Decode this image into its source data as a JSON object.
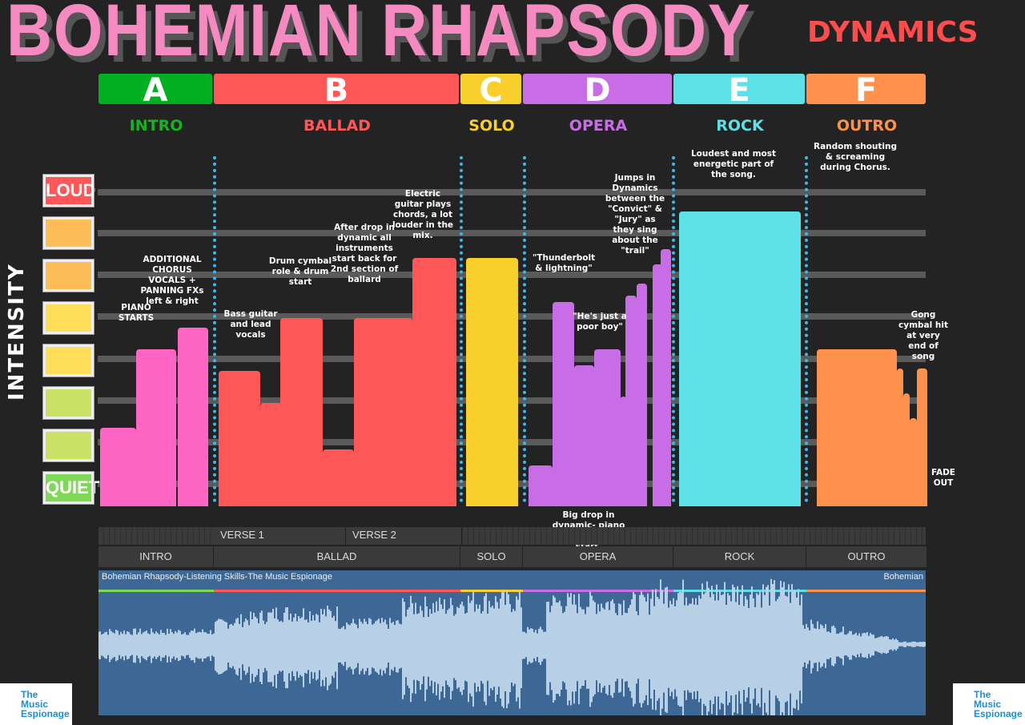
{
  "title": "BOHEMIAN RHAPSODY",
  "subtitle": "DYNAMICS",
  "y_axis_label": "INTENSITY",
  "levels": {
    "top": "LOUD",
    "bottom": "QUIET"
  },
  "colors": {
    "intro": "#00b020",
    "ballad": "#ff5757",
    "solo": "#f8cf2b",
    "opera": "#c86de6",
    "rock": "#5ce1e6",
    "outro": "#ff914d",
    "dots": "#3db8ee",
    "title": "#f48ac0",
    "subtitle": "#ff4d4d"
  },
  "sections": [
    {
      "letter": "A",
      "name": "INTRO",
      "color": "#00b020",
      "textcolor": "#17b21f"
    },
    {
      "letter": "B",
      "name": "BALLAD",
      "color": "#ff5757",
      "textcolor": "#ff5757"
    },
    {
      "letter": "C",
      "name": "SOLO",
      "color": "#f8cf2b",
      "textcolor": "#f8cf2b"
    },
    {
      "letter": "D",
      "name": "OPERA",
      "color": "#c86de6",
      "textcolor": "#c86de6"
    },
    {
      "letter": "E",
      "name": "ROCK",
      "color": "#5ce1e6",
      "textcolor": "#5ce1e6"
    },
    {
      "letter": "F",
      "name": "OUTRO",
      "color": "#ff914d",
      "textcolor": "#ff914d"
    }
  ],
  "chart_data": {
    "type": "bar",
    "ylabel": "INTENSITY",
    "ylim": [
      0,
      100
    ],
    "series": [
      {
        "section": "INTRO",
        "values": [
          25,
          50,
          57
        ]
      },
      {
        "section": "BALLAD",
        "values": [
          43,
          33,
          60,
          18,
          60,
          79
        ]
      },
      {
        "section": "SOLO",
        "values": [
          79
        ]
      },
      {
        "section": "OPERA",
        "values": [
          13,
          65,
          45,
          50,
          35,
          67,
          71,
          77,
          82
        ]
      },
      {
        "section": "ROCK",
        "values": [
          94
        ]
      },
      {
        "section": "OUTRO",
        "values": [
          50,
          44,
          36,
          28,
          44
        ]
      }
    ]
  },
  "annotations": {
    "piano": "PIANO STARTS",
    "chorus": "ADDITIONAL CHORUS VOCALS + PANNING FXs left & right",
    "bass": "Bass guitar and lead vocals",
    "drum": "Drum cymbal role & drum start",
    "afterdrop": "After drop in dynamic all instruments start back for 2nd section of ballard",
    "guitar": "Electric guitar plays chords, a lot louder in the mix.",
    "thunder": "\"Thunderbolt & lightning\"",
    "poorboy": "\"He's just a poor boy\"",
    "jumps": "Jumps in Dynamics between the \"Convict\" & \"Jury\" as they sing about the \"trail\"",
    "bigdrop": "Big drop in dynamic- piano and single vocals start.",
    "loudest": "Loudest and most energetic part of the song.",
    "shouting": "Random shouting & screaming during Chorus.",
    "gong": "Gong cymbal hit at very end of song",
    "fade": "FADE OUT"
  },
  "timeline": {
    "verses": [
      "VERSE 1",
      "VERSE 2"
    ],
    "sections": [
      "INTRO",
      "BALLAD",
      "SOLO",
      "OPERA",
      "ROCK",
      "OUTRO"
    ],
    "track_name": "Bohemian Rhapsody-Listening Skills-The Music Espionage",
    "track_name_right": "Bohemian"
  },
  "logo": {
    "line1": "The",
    "line2": "Music",
    "line3": "Espionage"
  }
}
